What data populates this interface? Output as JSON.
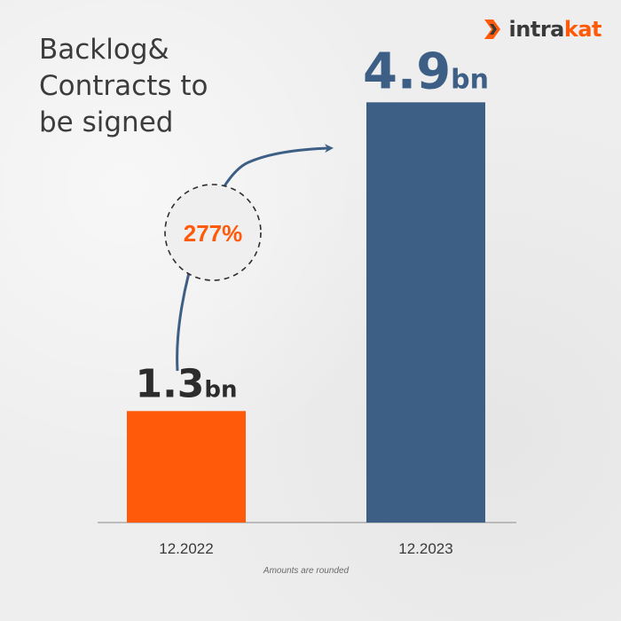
{
  "brand": {
    "logo_part1": "intra",
    "logo_part2": "kat",
    "accent": "#ff5a0a",
    "dark": "#3d5f85"
  },
  "title": "Backlog&\nContracts to\nbe signed",
  "growth_label": "277%",
  "footnote": "Amounts are rounded",
  "chart_data": {
    "type": "bar",
    "title": "Backlog& Contracts to be signed",
    "categories": [
      "12.2022",
      "12.2023"
    ],
    "values": [
      1.3,
      4.9
    ],
    "value_labels": [
      {
        "number": "1.3",
        "unit": "bn"
      },
      {
        "number": "4.9",
        "unit": "bn"
      }
    ],
    "colors": [
      "#ff5a0a",
      "#3d5f85"
    ],
    "ylim": [
      0,
      5.4
    ],
    "grid": false,
    "annotation": "277%"
  }
}
